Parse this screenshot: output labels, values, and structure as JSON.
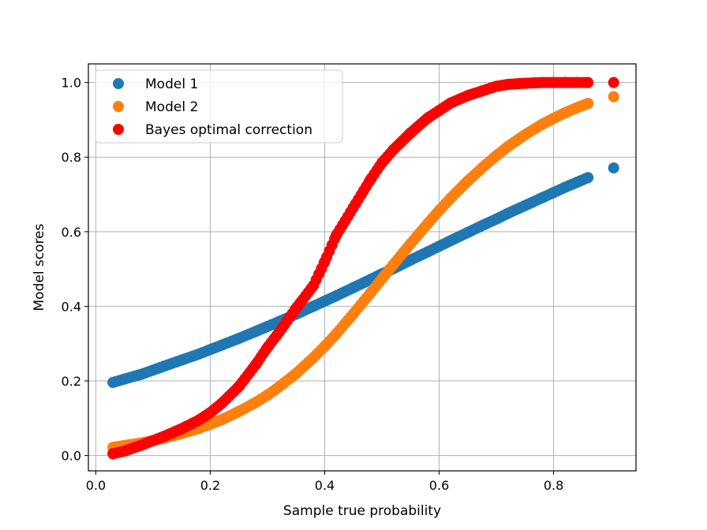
{
  "chart_data": {
    "type": "scatter",
    "title": "",
    "xlabel": "Sample true probability",
    "ylabel": "Model scores",
    "xlim": [
      -0.013,
      0.944
    ],
    "ylim": [
      -0.041,
      1.05
    ],
    "xticks": [
      0.0,
      0.2,
      0.4,
      0.6,
      0.8
    ],
    "xtick_labels": [
      "0.0",
      "0.2",
      "0.4",
      "0.6",
      "0.8"
    ],
    "yticks": [
      0.0,
      0.2,
      0.4,
      0.6,
      0.8,
      1.0
    ],
    "ytick_labels": [
      "0.0",
      "0.2",
      "0.4",
      "0.6",
      "0.8",
      "1.0"
    ],
    "grid": true,
    "legend_position": "top-left",
    "series": [
      {
        "name": "Model 1",
        "color": "#1f77b4",
        "points": [
          [
            0.03,
            0.196
          ],
          [
            0.05,
            0.205
          ],
          [
            0.08,
            0.218
          ],
          [
            0.1,
            0.229
          ],
          [
            0.12,
            0.24
          ],
          [
            0.15,
            0.256
          ],
          [
            0.18,
            0.272
          ],
          [
            0.2,
            0.284
          ],
          [
            0.22,
            0.296
          ],
          [
            0.25,
            0.314
          ],
          [
            0.28,
            0.333
          ],
          [
            0.3,
            0.346
          ],
          [
            0.32,
            0.359
          ],
          [
            0.35,
            0.379
          ],
          [
            0.38,
            0.4
          ],
          [
            0.4,
            0.414
          ],
          [
            0.42,
            0.428
          ],
          [
            0.45,
            0.45
          ],
          [
            0.48,
            0.472
          ],
          [
            0.5,
            0.487
          ],
          [
            0.52,
            0.501
          ],
          [
            0.55,
            0.524
          ],
          [
            0.58,
            0.546
          ],
          [
            0.6,
            0.561
          ],
          [
            0.62,
            0.576
          ],
          [
            0.65,
            0.598
          ],
          [
            0.68,
            0.62
          ],
          [
            0.7,
            0.634
          ],
          [
            0.72,
            0.649
          ],
          [
            0.75,
            0.67
          ],
          [
            0.78,
            0.691
          ],
          [
            0.8,
            0.705
          ],
          [
            0.82,
            0.719
          ],
          [
            0.84,
            0.732
          ],
          [
            0.86,
            0.745
          ],
          [
            0.905,
            0.771
          ]
        ]
      },
      {
        "name": "Model 2",
        "color": "#ff7f0e",
        "points": [
          [
            0.03,
            0.022
          ],
          [
            0.05,
            0.027
          ],
          [
            0.08,
            0.034
          ],
          [
            0.1,
            0.04
          ],
          [
            0.12,
            0.047
          ],
          [
            0.15,
            0.059
          ],
          [
            0.18,
            0.073
          ],
          [
            0.2,
            0.084
          ],
          [
            0.22,
            0.096
          ],
          [
            0.25,
            0.118
          ],
          [
            0.28,
            0.143
          ],
          [
            0.3,
            0.162
          ],
          [
            0.32,
            0.184
          ],
          [
            0.35,
            0.22
          ],
          [
            0.38,
            0.262
          ],
          [
            0.4,
            0.293
          ],
          [
            0.42,
            0.326
          ],
          [
            0.45,
            0.38
          ],
          [
            0.48,
            0.436
          ],
          [
            0.5,
            0.474
          ],
          [
            0.52,
            0.512
          ],
          [
            0.55,
            0.568
          ],
          [
            0.58,
            0.622
          ],
          [
            0.6,
            0.657
          ],
          [
            0.62,
            0.69
          ],
          [
            0.65,
            0.736
          ],
          [
            0.68,
            0.778
          ],
          [
            0.7,
            0.804
          ],
          [
            0.72,
            0.828
          ],
          [
            0.75,
            0.86
          ],
          [
            0.78,
            0.888
          ],
          [
            0.8,
            0.904
          ],
          [
            0.82,
            0.919
          ],
          [
            0.84,
            0.932
          ],
          [
            0.86,
            0.944
          ],
          [
            0.905,
            0.962
          ]
        ]
      },
      {
        "name": "Bayes optimal correction",
        "color": "#ff0000",
        "points": [
          [
            0.03,
            0.005
          ],
          [
            0.05,
            0.012
          ],
          [
            0.08,
            0.028
          ],
          [
            0.1,
            0.04
          ],
          [
            0.12,
            0.052
          ],
          [
            0.15,
            0.072
          ],
          [
            0.18,
            0.095
          ],
          [
            0.2,
            0.115
          ],
          [
            0.22,
            0.14
          ],
          [
            0.25,
            0.185
          ],
          [
            0.28,
            0.245
          ],
          [
            0.3,
            0.29
          ],
          [
            0.32,
            0.33
          ],
          [
            0.35,
            0.395
          ],
          [
            0.38,
            0.455
          ],
          [
            0.4,
            0.52
          ],
          [
            0.42,
            0.59
          ],
          [
            0.45,
            0.665
          ],
          [
            0.48,
            0.74
          ],
          [
            0.5,
            0.785
          ],
          [
            0.52,
            0.82
          ],
          [
            0.55,
            0.865
          ],
          [
            0.58,
            0.905
          ],
          [
            0.6,
            0.925
          ],
          [
            0.62,
            0.945
          ],
          [
            0.65,
            0.965
          ],
          [
            0.68,
            0.98
          ],
          [
            0.7,
            0.99
          ],
          [
            0.72,
            0.995
          ],
          [
            0.75,
            0.998
          ],
          [
            0.78,
            1.0
          ],
          [
            0.8,
            1.0
          ],
          [
            0.82,
            1.0
          ],
          [
            0.84,
            1.0
          ],
          [
            0.86,
            1.0
          ],
          [
            0.905,
            1.0
          ]
        ]
      }
    ]
  }
}
